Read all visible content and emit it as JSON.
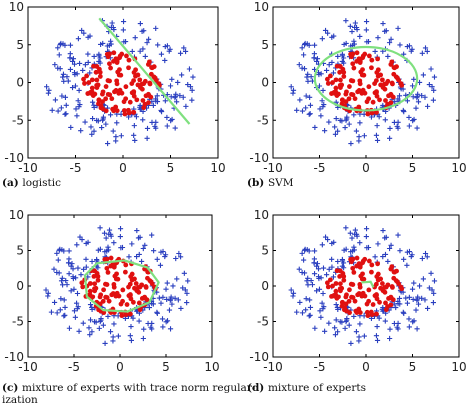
{
  "figure": {
    "panels_layout": "2x2 grid"
  },
  "chart_data": [
    {
      "type": "scatter",
      "label": "(a)",
      "caption": "logistic",
      "caption_lines": [
        "logistic"
      ],
      "xlim": [
        -10,
        10
      ],
      "ylim": [
        -10,
        10
      ],
      "xticks": [
        -10,
        -5,
        0,
        5,
        10
      ],
      "yticks": [
        -10,
        -5,
        0,
        5,
        10
      ],
      "boundary": {
        "kind": "line",
        "color": "#7fe07f",
        "points": [
          [
            -2.5,
            8.5
          ],
          [
            7.0,
            -5.5
          ]
        ]
      }
    },
    {
      "type": "scatter",
      "label": "(b)",
      "caption": "SVM",
      "caption_lines": [
        "SVM"
      ],
      "xlim": [
        -10,
        10
      ],
      "ylim": [
        -10,
        10
      ],
      "xticks": [
        -10,
        -5,
        0,
        5,
        10
      ],
      "yticks": [
        -10,
        -5,
        0,
        5,
        10
      ],
      "boundary": {
        "kind": "ellipse",
        "color": "#7fe07f",
        "cx": 0.0,
        "cy": 0.5,
        "rx": 5.5,
        "ry": 4.2
      }
    },
    {
      "type": "scatter",
      "label": "(c)",
      "caption": "mixture of experts with trace norm regularization",
      "caption_lines": [
        "mixture of experts with trace norm regular-",
        "ization"
      ],
      "xlim": [
        -10,
        10
      ],
      "ylim": [
        -10,
        10
      ],
      "xticks": [
        -10,
        -5,
        0,
        5,
        10
      ],
      "yticks": [
        -10,
        -5,
        0,
        5,
        10
      ],
      "boundary": {
        "kind": "polygon",
        "color": "#7fe07f",
        "points": [
          [
            -3.8,
            1.5
          ],
          [
            -2.5,
            3.2
          ],
          [
            0.5,
            3.6
          ],
          [
            3.0,
            2.6
          ],
          [
            4.2,
            0.5
          ],
          [
            3.2,
            -2.3
          ],
          [
            0.8,
            -3.6
          ],
          [
            -1.8,
            -3.4
          ],
          [
            -3.6,
            -1.5
          ]
        ]
      }
    },
    {
      "type": "scatter",
      "label": "(d)",
      "caption": "mixture of experts",
      "caption_lines": [
        "mixture of experts"
      ],
      "xlim": [
        -10,
        10
      ],
      "ylim": [
        -10,
        10
      ],
      "xticks": [
        -10,
        -5,
        0,
        5,
        10
      ],
      "yticks": [
        -10,
        -5,
        0,
        5,
        10
      ],
      "boundary": {
        "kind": "small-curve",
        "color": "#7fe07f",
        "points": [
          [
            -0.5,
            0.5
          ],
          [
            0.5,
            0.6
          ],
          [
            0.8,
            -0.2
          ]
        ]
      }
    }
  ],
  "series": {
    "outer": {
      "marker": "plus",
      "color": "#2a3fbf",
      "n": 210,
      "r_min": 3.5,
      "r_max": 8.5
    },
    "inner": {
      "marker": "dot",
      "color": "#e01010",
      "n": 120,
      "r_max": 4.2
    }
  }
}
